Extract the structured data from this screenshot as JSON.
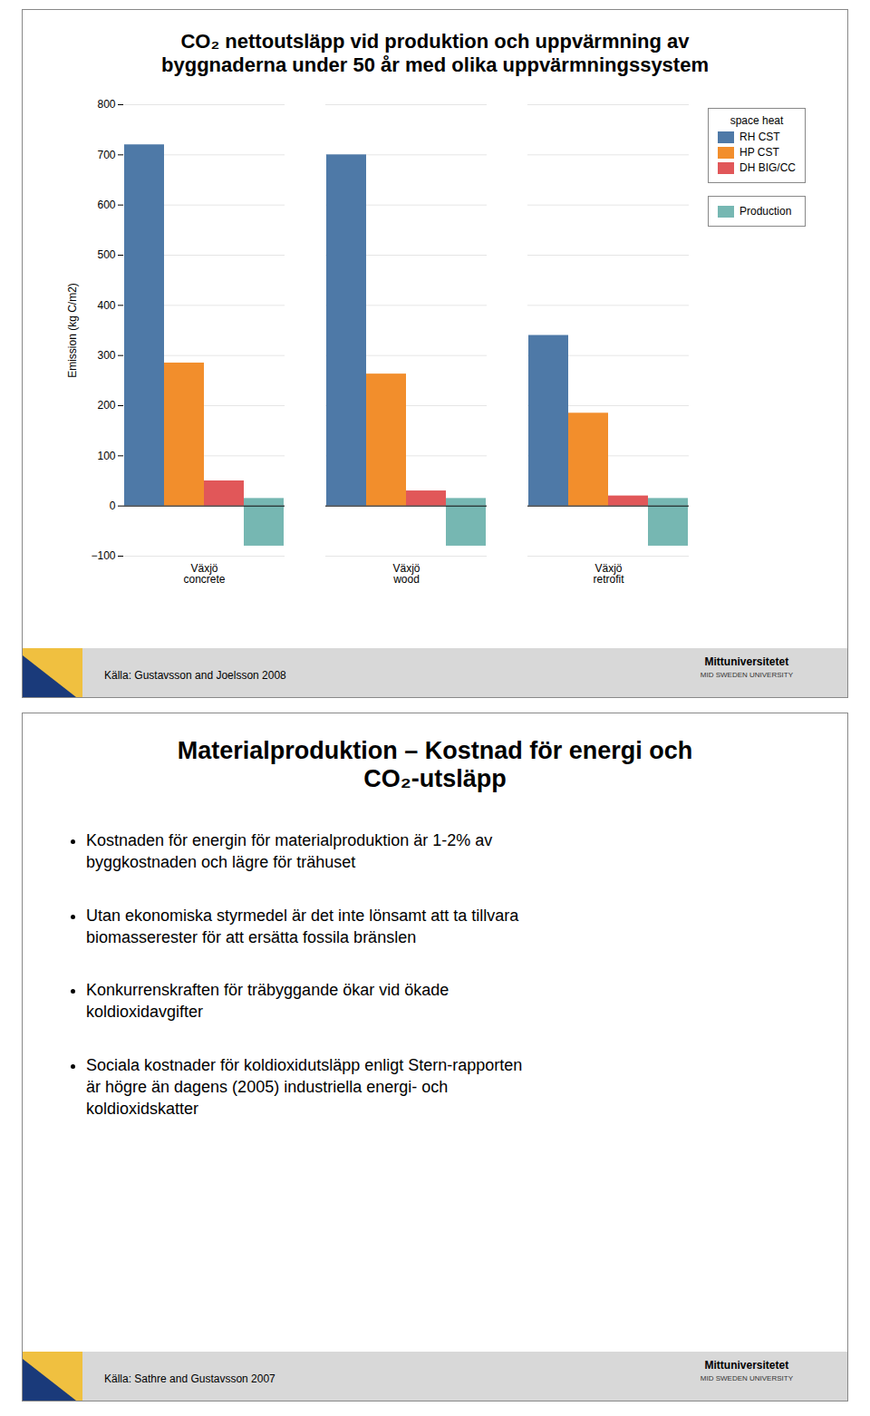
{
  "chart_data": [
    {
      "type": "bar",
      "title": "CO₂ nettoutsläpp vid produktion och uppvärmning av\nbyggnaderna under 50 år med olika uppvärmningssystem",
      "ylabel": "Emission (kg C/m2)",
      "categories": [
        "Växjö\nconcrete",
        "Växjö\nwood",
        "Växjö\nretrofit"
      ],
      "series": [
        {
          "name": "RH CST",
          "group": "space heat",
          "values": [
            720,
            700,
            340
          ]
        },
        {
          "name": "HP CST",
          "group": "space heat",
          "values": [
            285,
            263,
            185
          ]
        },
        {
          "name": "DH BIG/CC",
          "group": "space heat",
          "values": [
            50,
            30,
            20
          ]
        },
        {
          "name": "Production",
          "values": [
            15,
            15,
            15
          ],
          "negative_values": [
            -80,
            -80,
            -80
          ]
        }
      ],
      "ylim": [
        -100,
        800
      ],
      "yticks": [
        -100,
        0,
        100,
        200,
        300,
        400,
        500,
        600,
        700,
        800
      ],
      "grid": true,
      "legend": "upper right",
      "annotations": [
        "Källa: Gustavsson and Joelsson 2008",
        "Mittuniversitetet",
        "MID SWEDEN UNIVERSITY"
      ]
    },
    {
      "type": "text",
      "title": "Materialproduktion – Kostnad för energi och\nCO₂-utsläpp",
      "bullets": [
        "Kostnaden för energin för materialproduktion är 1-2% av\nbyggkostnaden och lägre för trähuset",
        "Utan ekonomiska styrmedel är det inte lönsamt att ta tillvara\nbiomasserester för att ersätta fossila bränslen",
        "Konkurrenskraften för träbyggande ökar vid ökade\nkoldioxidavgifter",
        "Sociala kostnader för koldioxidutsläpp enligt Stern-rapporten\när högre än dagens (2005)  industriella energi- och\nkoldioxidskatter"
      ],
      "annotations": [
        "Källa: Sathre and Gustavsson 2007",
        "Mittuniversitetet",
        "MID SWEDEN UNIVERSITY"
      ]
    }
  ]
}
